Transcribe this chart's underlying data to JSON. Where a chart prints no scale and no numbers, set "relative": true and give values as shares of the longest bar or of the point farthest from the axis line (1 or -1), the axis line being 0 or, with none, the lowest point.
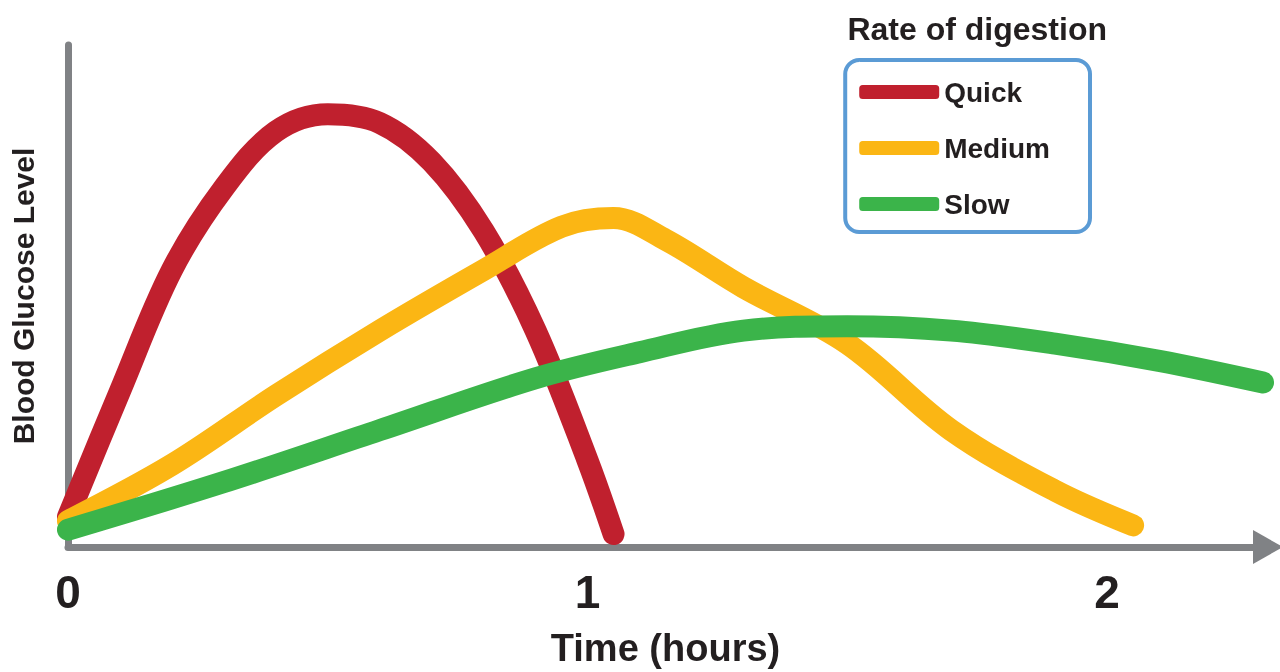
{
  "chart_data": {
    "type": "line",
    "relative": true,
    "xlabel": "Time (hours)",
    "ylabel": "Blood Glucose Level",
    "legend_title": "Rate of digestion",
    "legend": "top right",
    "grid": false,
    "marker": "none",
    "line_style": "solid",
    "tick_labels": "x",
    "xlim": [
      0,
      2.3
    ],
    "xticks": [
      0,
      1,
      2
    ],
    "series": [
      {
        "name": "Quick",
        "color": "#c0202e",
        "x": [
          0,
          0.1,
          0.2,
          0.3,
          0.4,
          0.5,
          0.6,
          0.7,
          0.8,
          0.9,
          1.0,
          1.05
        ],
        "values": [
          0.07,
          0.36,
          0.64,
          0.83,
          0.96,
          1,
          0.98,
          0.89,
          0.73,
          0.5,
          0.2,
          0.03
        ]
      },
      {
        "name": "Medium",
        "color": "#fbb614",
        "x": [
          0,
          0.2,
          0.4,
          0.6,
          0.8,
          0.95,
          1.05,
          1.15,
          1.3,
          1.5,
          1.7,
          1.9,
          2.05
        ],
        "values": [
          0.06,
          0.19,
          0.35,
          0.5,
          0.64,
          0.74,
          0.76,
          0.71,
          0.6,
          0.47,
          0.27,
          0.13,
          0.05
        ]
      },
      {
        "name": "Slow",
        "color": "#3bb44a",
        "x": [
          0,
          0.3,
          0.6,
          0.9,
          1.1,
          1.3,
          1.5,
          1.7,
          1.9,
          2.1,
          2.3
        ],
        "values": [
          0.04,
          0.15,
          0.27,
          0.39,
          0.45,
          0.5,
          0.51,
          0.5,
          0.47,
          0.43,
          0.38
        ]
      }
    ]
  }
}
